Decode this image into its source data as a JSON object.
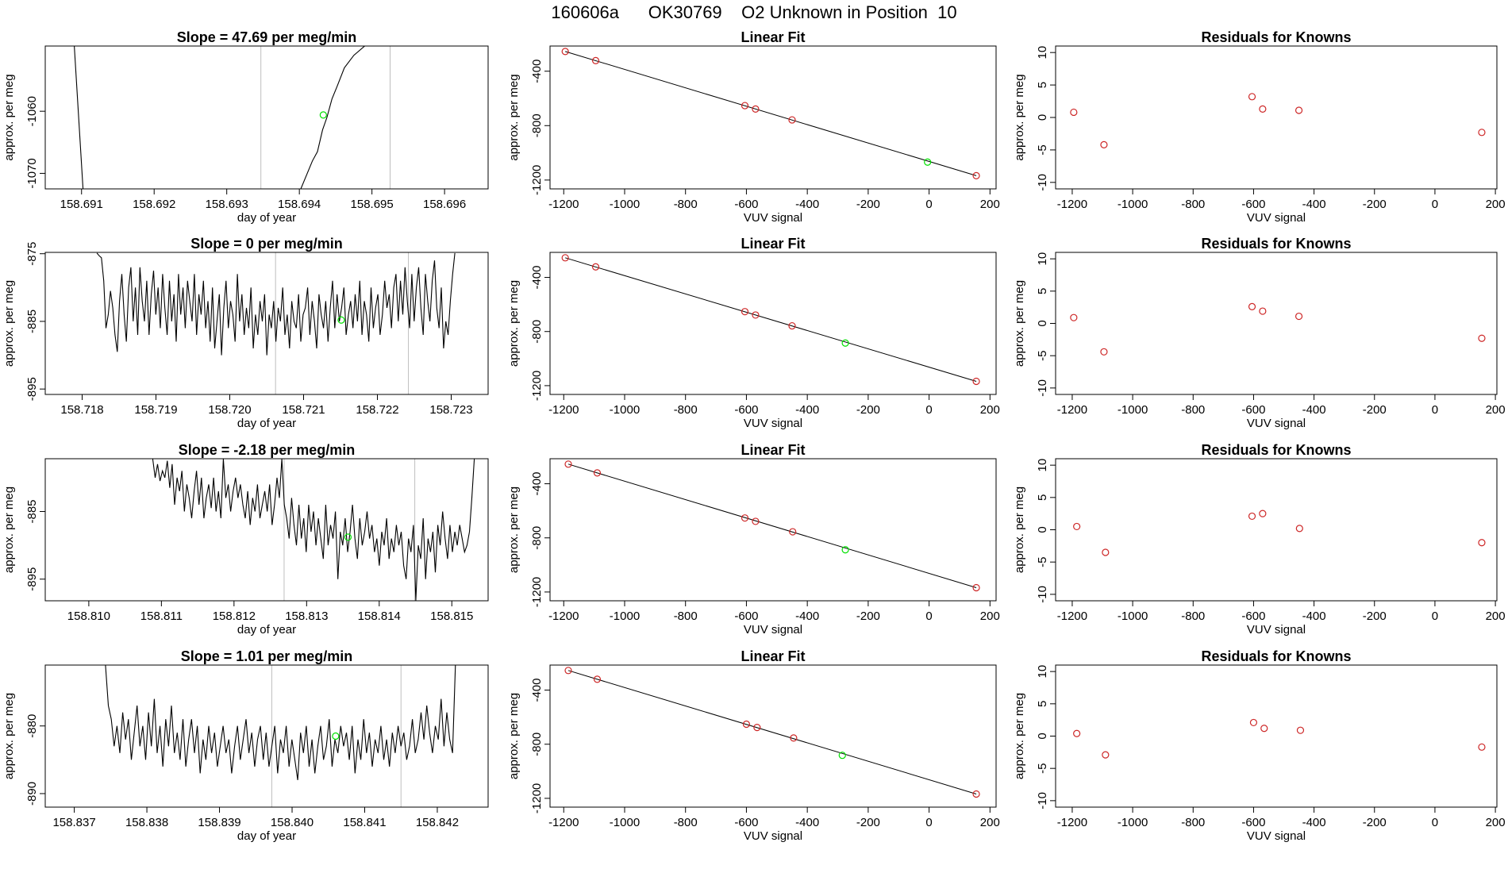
{
  "page": {
    "title_parts": [
      "160606a",
      "OK30769",
      "O2 Unknown in Position  10"
    ]
  },
  "colors": {
    "unknown": "#00e000",
    "known": "#cd2626",
    "line": "#000000",
    "marker_lines": "#bebebe",
    "frame": "#000000"
  },
  "chart_data": [
    {
      "type": "line",
      "panel": "timeseries-1",
      "title": "Slope =  47.69  per meg/min",
      "xlabel": "day of year",
      "ylabel": "approx. per meg",
      "xlim": [
        158.6905,
        158.6966
      ],
      "ylim": [
        -1072.5,
        -1049.5
      ],
      "xticks": [
        158.691,
        158.692,
        158.693,
        158.694,
        158.695,
        158.696
      ],
      "xtick_labels": [
        "158.691",
        "158.692",
        "158.693",
        "158.694",
        "158.695",
        "158.696"
      ],
      "yticks": [
        -1070,
        -1060
      ],
      "ytick_labels": [
        "-1070",
        "-1060"
      ],
      "x": [
        158.6909,
        158.69102,
        158.69402,
        158.69418,
        158.69425,
        158.69432,
        158.69438,
        158.69445,
        158.69452,
        158.69462,
        158.69475,
        158.6949,
        158.6951
      ],
      "y": [
        -1049.5,
        -1072.5,
        -1072.5,
        -1068,
        -1066.5,
        -1063,
        -1061,
        -1058,
        -1056,
        -1053,
        -1051,
        -1049.5,
        -1049.5
      ],
      "vlines": [
        158.69347,
        158.69525
      ],
      "unknown_point": {
        "x": 158.69433,
        "y": -1060.6
      }
    },
    {
      "type": "line",
      "panel": "timeseries-2",
      "title": "Slope =  0  per meg/min",
      "xlabel": "day of year",
      "ylabel": "approx. per meg",
      "xlim": [
        158.7175,
        158.7235
      ],
      "ylim": [
        -895.8,
        -874.8
      ],
      "xticks": [
        158.718,
        158.719,
        158.72,
        158.721,
        158.722,
        158.723
      ],
      "xtick_labels": [
        "158.718",
        "158.719",
        "158.720",
        "158.721",
        "158.722",
        "158.723"
      ],
      "yticks": [
        -895,
        -885,
        -875
      ],
      "ytick_labels": [
        "-895",
        "-885",
        "-875"
      ],
      "vlines": [
        158.72062,
        158.72242
      ],
      "unknown_point": {
        "x": 158.72151,
        "y": -884.8
      },
      "series_y": [
        -874.9,
        -875.3,
        -875.6,
        -879,
        -886,
        -884,
        -880.5,
        -883,
        -887,
        -889.5,
        -882,
        -878,
        -884,
        -888,
        -880,
        -877,
        -885,
        -880,
        -887,
        -877,
        -882,
        -885,
        -879,
        -887,
        -881,
        -877.5,
        -884,
        -880,
        -886,
        -878,
        -883,
        -887,
        -879,
        -885,
        -881,
        -888,
        -878,
        -884,
        -880,
        -886,
        -879,
        -882,
        -885,
        -878,
        -887,
        -881,
        -884,
        -879,
        -886,
        -882,
        -888,
        -880,
        -889,
        -885,
        -881,
        -890,
        -883,
        -879,
        -886,
        -882,
        -884,
        -888,
        -878,
        -885,
        -881,
        -887,
        -883,
        -886,
        -880,
        -889,
        -884,
        -887,
        -882,
        -885,
        -881,
        -890,
        -884,
        -886,
        -882,
        -888,
        -883,
        -885,
        -880,
        -887,
        -884,
        -889,
        -882,
        -885,
        -886,
        -881,
        -888,
        -884,
        -883,
        -880,
        -887,
        -882,
        -885,
        -889,
        -881,
        -884,
        -886,
        -882,
        -888,
        -883,
        -879,
        -886,
        -881,
        -885,
        -883,
        -880,
        -887,
        -884,
        -882,
        -886,
        -881,
        -885,
        -879,
        -887,
        -882,
        -884,
        -888,
        -880,
        -886,
        -883,
        -881,
        -887,
        -884,
        -879,
        -883,
        -881,
        -886,
        -880,
        -878,
        -885,
        -879,
        -884,
        -877,
        -882,
        -886,
        -878,
        -885,
        -880,
        -877,
        -883,
        -887,
        -878,
        -882,
        -885,
        -879,
        -876,
        -883,
        -886,
        -880,
        -889,
        -885,
        -887,
        -882,
        -878,
        -874.9
      ],
      "series_x_range": [
        158.7182,
        158.72305
      ]
    },
    {
      "type": "line",
      "panel": "timeseries-3",
      "title": "Slope =  -2.18  per meg/min",
      "xlabel": "day of year",
      "ylabel": "approx. per meg",
      "xlim": [
        158.8094,
        158.8155
      ],
      "ylim": [
        -898.2,
        -877.2
      ],
      "xticks": [
        158.81,
        158.811,
        158.812,
        158.813,
        158.814,
        158.815
      ],
      "xtick_labels": [
        "158.810",
        "158.811",
        "158.812",
        "158.813",
        "158.814",
        "158.815"
      ],
      "yticks": [
        -895,
        -885
      ],
      "ytick_labels": [
        "-895",
        "-885"
      ],
      "vlines": [
        158.81269,
        158.81449
      ],
      "unknown_point": {
        "x": 158.81357,
        "y": -888.8
      },
      "series_y": [
        -877.2,
        -880,
        -878,
        -880.5,
        -879,
        -880,
        -877.5,
        -881.5,
        -878,
        -884,
        -880,
        -882,
        -879,
        -885,
        -881,
        -883,
        -886,
        -882,
        -879,
        -884,
        -880,
        -886,
        -883,
        -881,
        -884.5,
        -880,
        -885,
        -882,
        -886,
        -877.2,
        -883,
        -881,
        -885,
        -882,
        -880,
        -883,
        -881,
        -884,
        -886,
        -882,
        -887,
        -883,
        -885,
        -881,
        -886,
        -884,
        -882,
        -885,
        -881,
        -887,
        -884,
        -880,
        -883,
        -877.2,
        -884,
        -886,
        -889,
        -883,
        -887,
        -890,
        -884,
        -889,
        -886,
        -891,
        -884,
        -888,
        -885,
        -890,
        -886,
        -889,
        -892,
        -884,
        -890,
        -887,
        -889,
        -885,
        -895,
        -888,
        -890,
        -886,
        -891,
        -888,
        -884,
        -889,
        -892,
        -886,
        -890,
        -888,
        -885,
        -889,
        -887,
        -891,
        -889,
        -893,
        -888,
        -890,
        -886,
        -892,
        -889,
        -891,
        -887,
        -890,
        -888,
        -893,
        -895,
        -889,
        -891,
        -887,
        -898.2,
        -890,
        -892,
        -886,
        -895,
        -889,
        -891,
        -888,
        -894,
        -887,
        -890,
        -885,
        -889,
        -892,
        -887,
        -891,
        -888,
        -890,
        -887,
        -889,
        -891,
        -890,
        -888,
        -883,
        -877.2
      ],
      "series_x_range": [
        158.81088,
        158.81531
      ]
    },
    {
      "type": "line",
      "panel": "timeseries-4",
      "title": "Slope =  1.01  per meg/min",
      "xlabel": "day of year",
      "ylabel": "approx. per meg",
      "xlim": [
        158.8366,
        158.8427
      ],
      "ylim": [
        -892,
        -871
      ],
      "xticks": [
        158.837,
        158.838,
        158.839,
        158.84,
        158.841,
        158.842
      ],
      "xtick_labels": [
        "158.837",
        "158.838",
        "158.839",
        "158.840",
        "158.841",
        "158.842"
      ],
      "yticks": [
        -890,
        -880
      ],
      "ytick_labels": [
        "-890",
        "-880"
      ],
      "vlines": [
        158.83972,
        158.8415
      ],
      "unknown_point": {
        "x": 158.8406,
        "y": -881.5
      },
      "series_y": [
        -871,
        -877,
        -879,
        -883,
        -880,
        -884,
        -878,
        -882,
        -879,
        -885,
        -881,
        -877,
        -883,
        -880,
        -885,
        -878,
        -883,
        -876,
        -884,
        -880,
        -886,
        -879,
        -883,
        -877,
        -884,
        -881,
        -885,
        -879,
        -886,
        -882,
        -879,
        -884,
        -880,
        -887,
        -882,
        -885,
        -880,
        -884,
        -881,
        -886,
        -883,
        -880,
        -884,
        -882,
        -887,
        -883,
        -880,
        -885,
        -882,
        -879,
        -884,
        -881,
        -886,
        -882,
        -880,
        -885,
        -881,
        -886,
        -883,
        -880,
        -887,
        -882,
        -884,
        -880,
        -886,
        -882,
        -885,
        -888,
        -881,
        -884,
        -880,
        -886,
        -882,
        -887,
        -883,
        -880,
        -885,
        -883,
        -879,
        -886,
        -882,
        -884,
        -880,
        -883,
        -881,
        -885,
        -880,
        -887,
        -882,
        -885,
        -879,
        -884,
        -881,
        -886,
        -882,
        -884,
        -880,
        -885,
        -882,
        -886,
        -881,
        -884,
        -880,
        -883,
        -881,
        -885,
        -883,
        -879,
        -884,
        -882,
        -878,
        -882,
        -877,
        -881,
        -884,
        -880,
        -882,
        -876,
        -883,
        -878,
        -882,
        -884,
        -871
      ],
      "series_x_range": [
        158.83743,
        158.84225
      ]
    },
    {
      "type": "scatter",
      "panel": "linearfit-1",
      "title": "Linear Fit",
      "xlabel": "VUV signal",
      "ylabel": "approx. per meg",
      "xlim": [
        -1245,
        220
      ],
      "ylim": [
        -1265,
        -215
      ],
      "xticks": [
        -1200,
        -1000,
        -800,
        -600,
        -400,
        -200,
        0,
        200
      ],
      "xtick_labels": [
        "-1200",
        "-1000",
        "-800",
        "-600",
        "-400",
        "-200",
        "0",
        "200"
      ],
      "yticks": [
        -1200,
        -800,
        -400
      ],
      "ytick_labels": [
        "-1200",
        "-800",
        "-400"
      ],
      "fit_line": {
        "x": [
          -1195,
          155
        ],
        "y": [
          -255,
          -1168
        ]
      },
      "knowns": {
        "x": [
          -1195,
          -1095,
          -605,
          -570,
          -450,
          155
        ],
        "y": [
          -255,
          -322,
          -653,
          -678,
          -758,
          -1168
        ]
      },
      "unknown": {
        "x": -5,
        "y": -1068
      }
    },
    {
      "type": "scatter",
      "panel": "linearfit-2",
      "title": "Linear Fit",
      "xlabel": "VUV signal",
      "ylabel": "approx. per meg",
      "xlim": [
        -1245,
        220
      ],
      "ylim": [
        -1265,
        -215
      ],
      "xticks": [
        -1200,
        -1000,
        -800,
        -600,
        -400,
        -200,
        0,
        200
      ],
      "xtick_labels": [
        "-1200",
        "-1000",
        "-800",
        "-600",
        "-400",
        "-200",
        "0",
        "200"
      ],
      "yticks": [
        -1200,
        -800,
        -400
      ],
      "ytick_labels": [
        "-1200",
        "-800",
        "-400"
      ],
      "fit_line": {
        "x": [
          -1195,
          155
        ],
        "y": [
          -255,
          -1168
        ]
      },
      "knowns": {
        "x": [
          -1195,
          -1095,
          -605,
          -570,
          -450,
          155
        ],
        "y": [
          -255,
          -322,
          -653,
          -678,
          -758,
          -1168
        ]
      },
      "unknown": {
        "x": -275,
        "y": -885
      }
    },
    {
      "type": "scatter",
      "panel": "linearfit-3",
      "title": "Linear Fit",
      "xlabel": "VUV signal",
      "ylabel": "approx. per meg",
      "xlim": [
        -1245,
        220
      ],
      "ylim": [
        -1265,
        -215
      ],
      "xticks": [
        -1200,
        -1000,
        -800,
        -600,
        -400,
        -200,
        0,
        200
      ],
      "xtick_labels": [
        "-1200",
        "-1000",
        "-800",
        "-600",
        "-400",
        "-200",
        "0",
        "200"
      ],
      "yticks": [
        -1200,
        -800,
        -400
      ],
      "ytick_labels": [
        "-1200",
        "-800",
        "-400"
      ],
      "fit_line": {
        "x": [
          -1185,
          155
        ],
        "y": [
          -255,
          -1168
        ]
      },
      "knowns": {
        "x": [
          -1185,
          -1090,
          -605,
          -570,
          -448,
          155
        ],
        "y": [
          -255,
          -320,
          -653,
          -678,
          -755,
          -1168
        ]
      },
      "unknown": {
        "x": -275,
        "y": -888
      }
    },
    {
      "type": "scatter",
      "panel": "linearfit-4",
      "title": "Linear Fit",
      "xlabel": "VUV signal",
      "ylabel": "approx. per meg",
      "xlim": [
        -1245,
        220
      ],
      "ylim": [
        -1265,
        -215
      ],
      "xticks": [
        -1200,
        -1000,
        -800,
        -600,
        -400,
        -200,
        0,
        200
      ],
      "xtick_labels": [
        "-1200",
        "-1000",
        "-800",
        "-600",
        "-400",
        "-200",
        "0",
        "200"
      ],
      "yticks": [
        -1200,
        -800,
        -400
      ],
      "ytick_labels": [
        "-1200",
        "-800",
        "-400"
      ],
      "fit_line": {
        "x": [
          -1185,
          155
        ],
        "y": [
          -255,
          -1168
        ]
      },
      "knowns": {
        "x": [
          -1185,
          -1090,
          -600,
          -565,
          -445,
          155
        ],
        "y": [
          -255,
          -320,
          -652,
          -676,
          -754,
          -1168
        ]
      },
      "unknown": {
        "x": -285,
        "y": -882
      }
    },
    {
      "type": "scatter",
      "panel": "residuals-1",
      "title": "Residuals for Knowns",
      "xlabel": "VUV signal",
      "ylabel": "approx. per meg",
      "xlim": [
        -1255,
        205
      ],
      "ylim": [
        -11,
        11
      ],
      "xticks": [
        -1200,
        -1000,
        -800,
        -600,
        -400,
        -200,
        0,
        200
      ],
      "xtick_labels": [
        "-1200",
        "-1000",
        "-800",
        "-600",
        "-400",
        "-200",
        "0",
        "200"
      ],
      "yticks": [
        -10,
        -5,
        0,
        5,
        10
      ],
      "ytick_labels": [
        "-10",
        "-5",
        "0",
        "5",
        "10"
      ],
      "x": [
        -1195,
        -1095,
        -605,
        -570,
        -450,
        155
      ],
      "y": [
        0.8,
        -4.2,
        3.2,
        1.3,
        1.1,
        -2.3
      ]
    },
    {
      "type": "scatter",
      "panel": "residuals-2",
      "title": "Residuals for Knowns",
      "xlabel": "VUV signal",
      "ylabel": "approx. per meg",
      "xlim": [
        -1255,
        205
      ],
      "ylim": [
        -11,
        11
      ],
      "xticks": [
        -1200,
        -1000,
        -800,
        -600,
        -400,
        -200,
        0,
        200
      ],
      "xtick_labels": [
        "-1200",
        "-1000",
        "-800",
        "-600",
        "-400",
        "-200",
        "0",
        "200"
      ],
      "yticks": [
        -10,
        -5,
        0,
        5,
        10
      ],
      "ytick_labels": [
        "-10",
        "-5",
        "0",
        "5",
        "10"
      ],
      "x": [
        -1195,
        -1095,
        -605,
        -570,
        -450,
        155
      ],
      "y": [
        0.9,
        -4.4,
        2.6,
        1.9,
        1.1,
        -2.3
      ]
    },
    {
      "type": "scatter",
      "panel": "residuals-3",
      "title": "Residuals for Knowns",
      "xlabel": "VUV signal",
      "ylabel": "approx. per meg",
      "xlim": [
        -1255,
        205
      ],
      "ylim": [
        -11,
        11
      ],
      "xticks": [
        -1200,
        -1000,
        -800,
        -600,
        -400,
        -200,
        0,
        200
      ],
      "xtick_labels": [
        "-1200",
        "-1000",
        "-800",
        "-600",
        "-400",
        "-200",
        "0",
        "200"
      ],
      "yticks": [
        -10,
        -5,
        0,
        5,
        10
      ],
      "ytick_labels": [
        "-10",
        "-5",
        "0",
        "5",
        "10"
      ],
      "x": [
        -1185,
        -1090,
        -605,
        -570,
        -448,
        155
      ],
      "y": [
        0.5,
        -3.5,
        2.1,
        2.5,
        0.2,
        -2.0
      ]
    },
    {
      "type": "scatter",
      "panel": "residuals-4",
      "title": "Residuals for Knowns",
      "xlabel": "VUV signal",
      "ylabel": "approx. per meg",
      "xlim": [
        -1255,
        205
      ],
      "ylim": [
        -11,
        11
      ],
      "xticks": [
        -1200,
        -1000,
        -800,
        -600,
        -400,
        -200,
        0,
        200
      ],
      "xtick_labels": [
        "-1200",
        "-1000",
        "-800",
        "-600",
        "-400",
        "-200",
        "0",
        "200"
      ],
      "yticks": [
        -10,
        -5,
        0,
        5,
        10
      ],
      "ytick_labels": [
        "-10",
        "-5",
        "0",
        "5",
        "10"
      ],
      "x": [
        -1185,
        -1090,
        -600,
        -565,
        -445,
        155
      ],
      "y": [
        0.4,
        -2.9,
        2.1,
        1.2,
        0.9,
        -1.7
      ]
    }
  ]
}
